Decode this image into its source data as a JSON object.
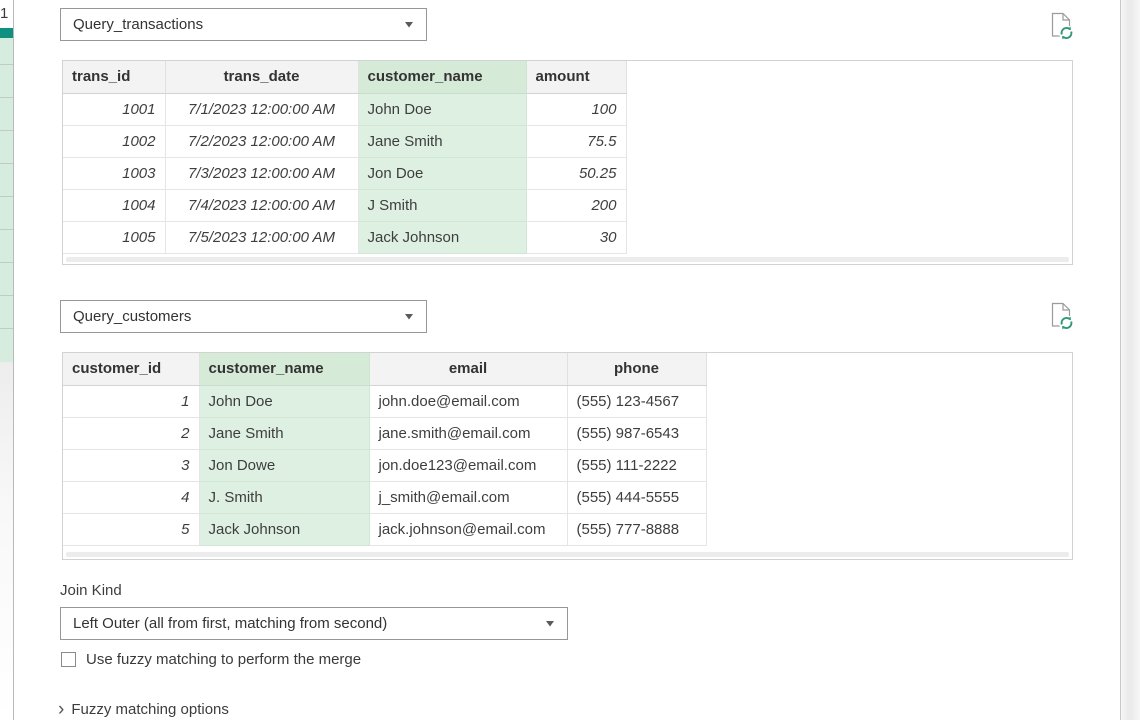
{
  "worksheet_edge": {
    "row_number": "1"
  },
  "colors": {
    "selected_column_header_bg": "#d6ead8",
    "selected_column_cell_bg": "#def0e2",
    "worksheet_teal_accent": "#0f9181",
    "refresh_icon_green": "#2f9a72"
  },
  "first_query": {
    "dropdown_value": "Query_transactions",
    "table": {
      "columns": [
        {
          "label": "trans_id",
          "type": "number",
          "halign": "left",
          "selected": false
        },
        {
          "label": "trans_date",
          "type": "date",
          "halign": "center",
          "selected": false
        },
        {
          "label": "customer_name",
          "type": "text",
          "halign": "left",
          "selected": true
        },
        {
          "label": "amount",
          "type": "number",
          "halign": "left",
          "selected": false
        }
      ],
      "rows": [
        [
          "1001",
          "7/1/2023 12:00:00 AM",
          "John Doe",
          "100"
        ],
        [
          "1002",
          "7/2/2023 12:00:00 AM",
          "Jane Smith",
          "75.5"
        ],
        [
          "1003",
          "7/3/2023 12:00:00 AM",
          "Jon Doe",
          "50.25"
        ],
        [
          "1004",
          "7/4/2023 12:00:00 AM",
          "J Smith",
          "200"
        ],
        [
          "1005",
          "7/5/2023 12:00:00 AM",
          "Jack Johnson",
          "30"
        ]
      ]
    }
  },
  "second_query": {
    "dropdown_value": "Query_customers",
    "table": {
      "columns": [
        {
          "label": "customer_id",
          "type": "number",
          "halign": "left",
          "selected": false
        },
        {
          "label": "customer_name",
          "type": "text",
          "halign": "left",
          "selected": true
        },
        {
          "label": "email",
          "type": "text",
          "halign": "center",
          "selected": false
        },
        {
          "label": "phone",
          "type": "text",
          "halign": "center",
          "selected": false
        }
      ],
      "rows": [
        [
          "1",
          "John Doe",
          "john.doe@email.com",
          "(555) 123-4567"
        ],
        [
          "2",
          "Jane Smith",
          "jane.smith@email.com",
          "(555) 987-6543"
        ],
        [
          "3",
          "Jon Dowe",
          "jon.doe123@email.com",
          "(555) 111-2222"
        ],
        [
          "4",
          "J. Smith",
          "j_smith@email.com",
          "(555) 444-5555"
        ],
        [
          "5",
          "Jack Johnson",
          "jack.johnson@email.com",
          "(555) 777-8888"
        ]
      ]
    }
  },
  "join_kind": {
    "label": "Join Kind",
    "dropdown_value": "Left Outer (all from first, matching from second)"
  },
  "fuzzy_matching": {
    "checkbox_label": "Use fuzzy matching to perform the merge",
    "checked": false,
    "options_label": "Fuzzy matching options",
    "chevron": "›"
  }
}
